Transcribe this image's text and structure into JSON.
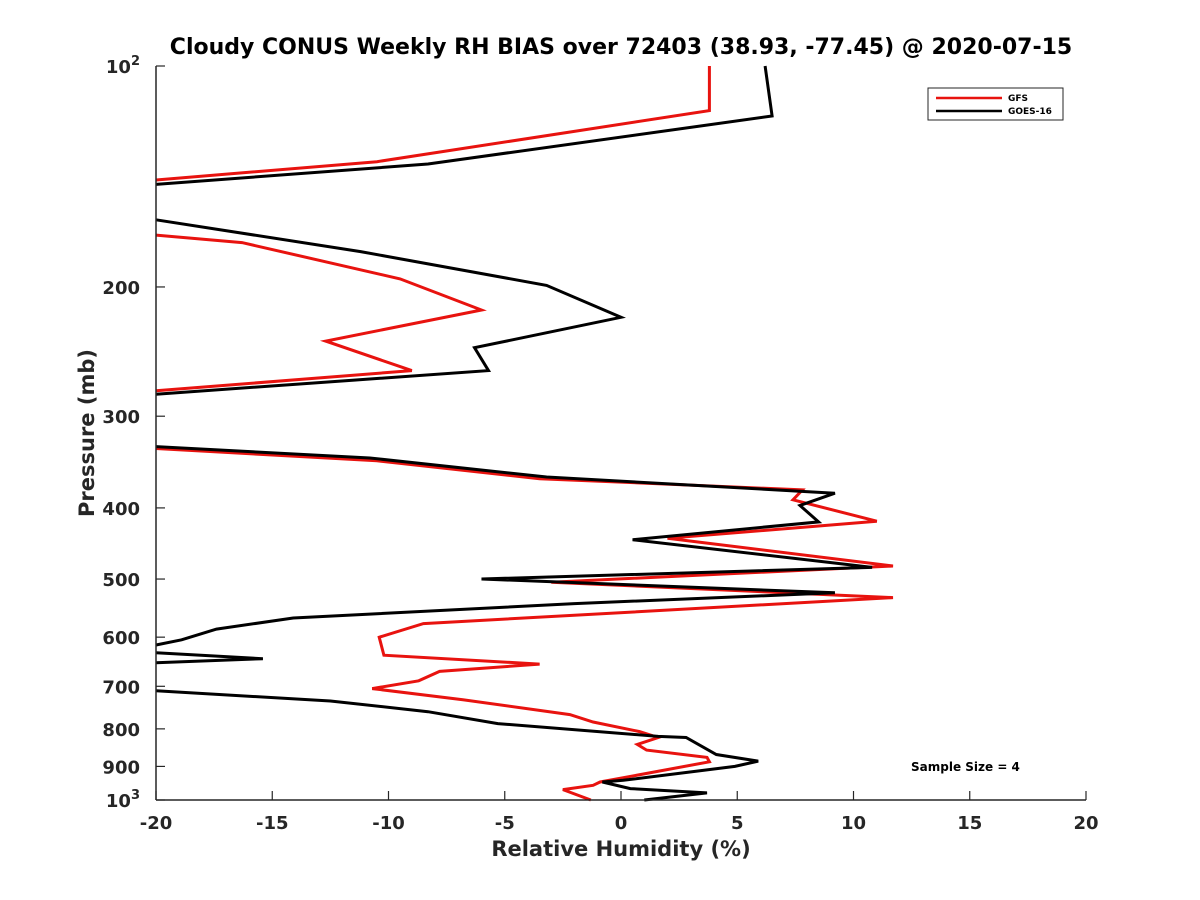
{
  "chart_data": {
    "type": "line",
    "title": "Cloudy CONUS Weekly RH BIAS over 72403 (38.93, -77.45) @ 2020-07-15",
    "xlabel": "Relative Humidity (%)",
    "ylabel": "Pressure (mb)",
    "xlim": [
      -20,
      20
    ],
    "ylim": [
      100,
      1000
    ],
    "y_scale": "log",
    "y_reversed": true,
    "grid": false,
    "legend_position": "top-right",
    "x_ticks": [
      {
        "value": -20,
        "label": "-20"
      },
      {
        "value": -15,
        "label": "-15"
      },
      {
        "value": -10,
        "label": "-10"
      },
      {
        "value": -5,
        "label": "-5"
      },
      {
        "value": 0,
        "label": "0"
      },
      {
        "value": 5,
        "label": "5"
      },
      {
        "value": 10,
        "label": "10"
      },
      {
        "value": 15,
        "label": "15"
      },
      {
        "value": 20,
        "label": "20"
      }
    ],
    "y_ticks": [
      {
        "value": 100,
        "label": "10",
        "sup": "2"
      },
      {
        "value": 200,
        "label": "200"
      },
      {
        "value": 300,
        "label": "300"
      },
      {
        "value": 400,
        "label": "400"
      },
      {
        "value": 500,
        "label": "500"
      },
      {
        "value": 600,
        "label": "600"
      },
      {
        "value": 700,
        "label": "700"
      },
      {
        "value": 800,
        "label": "800"
      },
      {
        "value": 900,
        "label": "900"
      },
      {
        "value": 1000,
        "label": "10",
        "sup": "3"
      }
    ],
    "annotation": "Sample Size = 4",
    "series": [
      {
        "name": "GFS",
        "color": "#e8130f",
        "segments": [
          [
            [
              3.8,
              100
            ],
            [
              3.8,
              115
            ],
            [
              -10.5,
              135
            ],
            [
              -20,
              143
            ]
          ],
          [
            [
              -20,
              170
            ],
            [
              -16.3,
              174
            ],
            [
              -9.5,
              195
            ],
            [
              -6,
              215
            ],
            [
              -12.7,
              237
            ],
            [
              -9,
              260
            ],
            [
              -20,
              277
            ]
          ],
          [
            [
              -20,
              332
            ],
            [
              -10.5,
              345
            ],
            [
              -3.5,
              365
            ],
            [
              7.8,
              378
            ],
            [
              7.4,
              390
            ],
            [
              11,
              417
            ],
            [
              2,
              440
            ],
            [
              11.7,
              480
            ],
            [
              -3,
              505
            ],
            [
              11.7,
              530
            ],
            [
              -8.5,
              575
            ],
            [
              -10.4,
              600
            ],
            [
              -10.2,
              635
            ],
            [
              -3.5,
              653
            ],
            [
              -7.8,
              668
            ],
            [
              -8.7,
              688
            ],
            [
              -10.7,
              705
            ],
            [
              -6.8,
              730
            ],
            [
              -2.2,
              765
            ],
            [
              -1.2,
              783
            ],
            [
              0.8,
              807
            ],
            [
              1.6,
              822
            ],
            [
              0.7,
              840
            ],
            [
              1.1,
              855
            ],
            [
              3.7,
              875
            ],
            [
              3.8,
              887
            ],
            [
              -0.9,
              945
            ],
            [
              -1.2,
              955
            ],
            [
              -2.5,
              968
            ],
            [
              -1.3,
              1000
            ]
          ]
        ]
      },
      {
        "name": "GOES-16",
        "color": "#000000",
        "segments": [
          [
            [
              6.2,
              100
            ],
            [
              6.5,
              117
            ],
            [
              -8.3,
              136
            ],
            [
              -20,
              145
            ]
          ],
          [
            [
              -20,
              162
            ],
            [
              -11.2,
              179
            ],
            [
              -3.2,
              199
            ],
            [
              0,
              220
            ],
            [
              -6.3,
              242
            ],
            [
              -5.7,
              260
            ],
            [
              -20,
              280
            ]
          ],
          [
            [
              -20,
              330
            ],
            [
              -10.8,
              342
            ],
            [
              -3.2,
              363
            ],
            [
              9.2,
              382
            ],
            [
              7.7,
              397
            ],
            [
              8.5,
              418
            ],
            [
              0.5,
              442
            ],
            [
              10.8,
              482
            ],
            [
              -6,
              500
            ],
            [
              9.2,
              522
            ],
            [
              -2,
              540
            ],
            [
              -14.1,
              565
            ],
            [
              -17.4,
              585
            ],
            [
              -18.9,
              605
            ],
            [
              -20,
              615
            ]
          ],
          [
            [
              -20,
              630
            ],
            [
              -15.4,
              642
            ],
            [
              -20,
              650
            ]
          ],
          [
            [
              -20,
              710
            ],
            [
              -12.5,
              733
            ],
            [
              -8.3,
              758
            ],
            [
              -5.3,
              787
            ],
            [
              1.6,
              819
            ],
            [
              2.8,
              822
            ],
            [
              4.1,
              867
            ],
            [
              5.9,
              885
            ],
            [
              4.9,
              900
            ],
            [
              0.1,
              940
            ],
            [
              -0.8,
              945
            ],
            [
              0.4,
              965
            ],
            [
              3.7,
              978
            ],
            [
              1,
              1000
            ]
          ]
        ]
      }
    ]
  }
}
